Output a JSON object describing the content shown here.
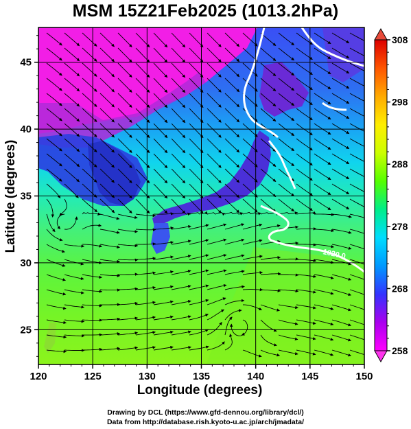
{
  "title": "MSM 15Z21Feb2025 (1013.2hPa)",
  "x_axis": {
    "label": "Longitude (degrees)",
    "ticks": [
      "120",
      "125",
      "130",
      "135",
      "140",
      "145",
      "150"
    ],
    "range": [
      120,
      150
    ]
  },
  "y_axis": {
    "label": "Latitude  (degrees)",
    "ticks": [
      "25",
      "30",
      "35",
      "40",
      "45"
    ],
    "range": [
      22.4,
      47.6
    ]
  },
  "colorbar": {
    "ticks": [
      "258",
      "268",
      "278",
      "288",
      "298",
      "308"
    ],
    "range": [
      258,
      308
    ],
    "colors": [
      "#ff00ff",
      "#aa00ee",
      "#3333ff",
      "#0099ff",
      "#00ddff",
      "#00ee88",
      "#55ff00",
      "#ccff00",
      "#ffee00",
      "#ffaa00",
      "#ff5500",
      "#dd0000"
    ]
  },
  "contour": {
    "label": "1020.0",
    "color": "#ffffff"
  },
  "credits": {
    "line1": "Drawing by DCL (https://www.gfd-dennou.org/library/dcl/)",
    "line2": "Data from http://database.rish.kyoto-u.ac.jp/arch/jmadata/"
  },
  "chart_data": {
    "type": "heatmap",
    "title": "MSM 15Z21Feb2025 (1013.2hPa)",
    "xlabel": "Longitude (degrees)",
    "ylabel": "Latitude  (degrees)",
    "xlim": [
      120,
      150
    ],
    "ylim": [
      22.4,
      47.6
    ],
    "variable_range": [
      258,
      308
    ],
    "overlay": "streamlines",
    "contour_label": "1020.0"
  }
}
